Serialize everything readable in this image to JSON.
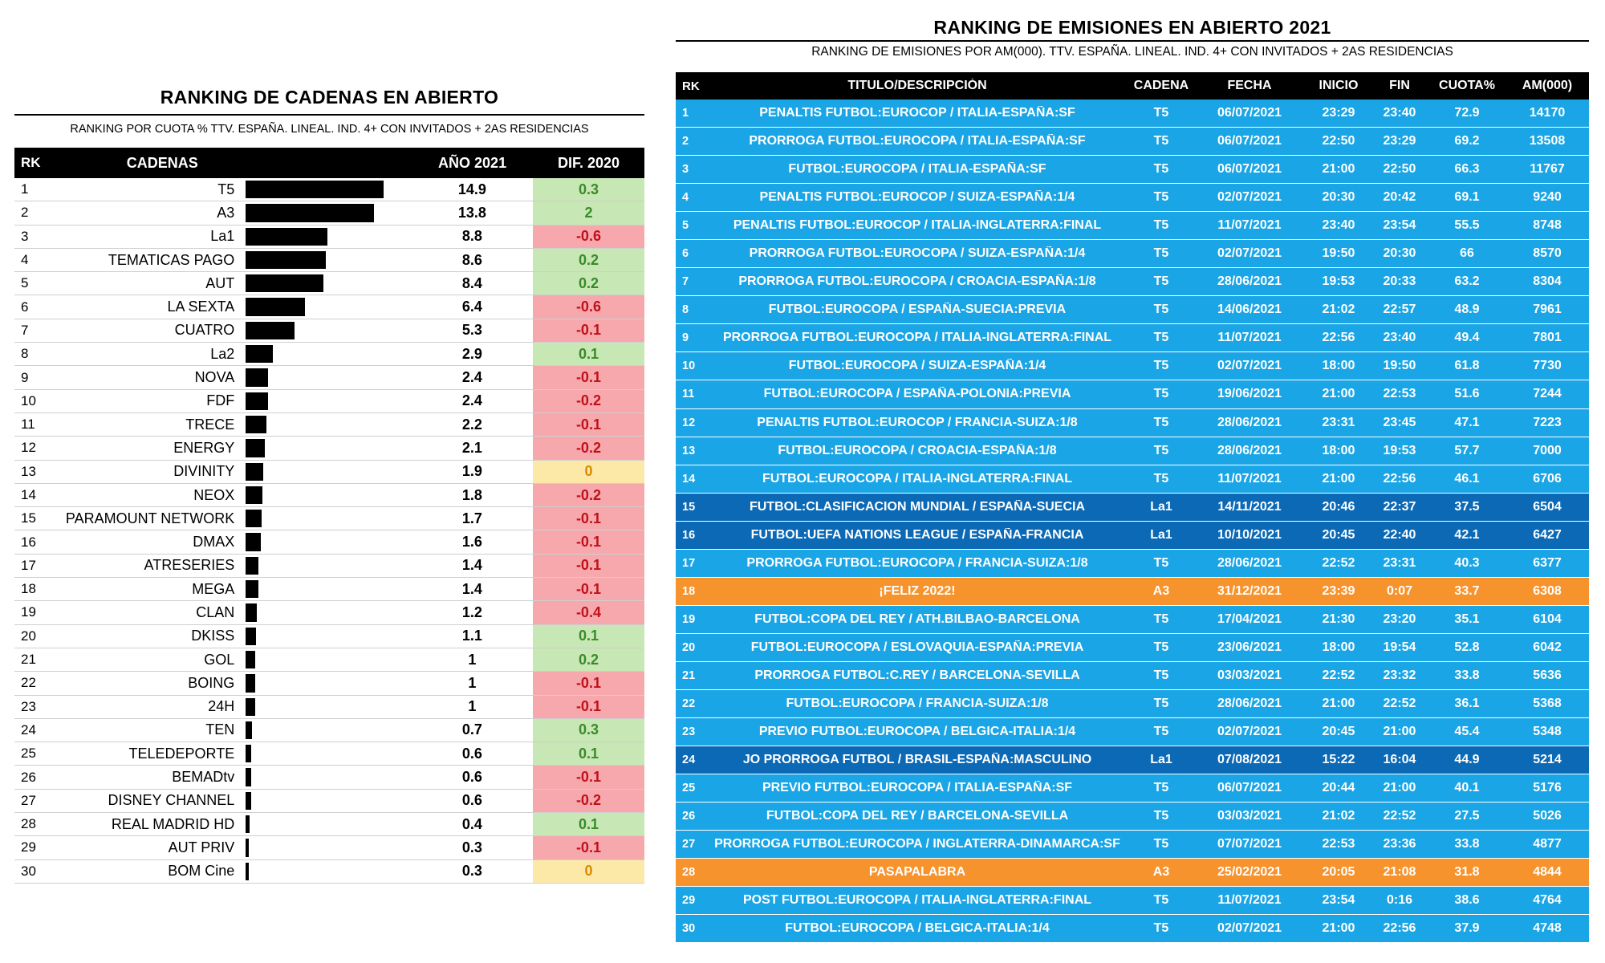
{
  "left": {
    "title": "RANKING DE CADENAS EN ABIERTO",
    "subtitle": "RANKING POR CUOTA % TTV. ESPAÑA. LINEAL. IND. 4+ CON INVITADOS + 2AS RESIDENCIAS",
    "headers": {
      "rk": "RK",
      "cadenas": "CADENAS",
      "anio": "AÑO 2021",
      "dif": "DIF. 2020"
    },
    "rows": [
      {
        "rk": "1",
        "name": "T5",
        "value": "14.9",
        "dif": "0.3",
        "sign": "pos"
      },
      {
        "rk": "2",
        "name": "A3",
        "value": "13.8",
        "dif": "2",
        "sign": "pos"
      },
      {
        "rk": "3",
        "name": "La1",
        "value": "8.8",
        "dif": "-0.6",
        "sign": "neg"
      },
      {
        "rk": "4",
        "name": "TEMATICAS PAGO",
        "value": "8.6",
        "dif": "0.2",
        "sign": "pos"
      },
      {
        "rk": "5",
        "name": "AUT",
        "value": "8.4",
        "dif": "0.2",
        "sign": "pos"
      },
      {
        "rk": "6",
        "name": "LA SEXTA",
        "value": "6.4",
        "dif": "-0.6",
        "sign": "neg"
      },
      {
        "rk": "7",
        "name": "CUATRO",
        "value": "5.3",
        "dif": "-0.1",
        "sign": "neg"
      },
      {
        "rk": "8",
        "name": "La2",
        "value": "2.9",
        "dif": "0.1",
        "sign": "pos"
      },
      {
        "rk": "9",
        "name": "NOVA",
        "value": "2.4",
        "dif": "-0.1",
        "sign": "neg"
      },
      {
        "rk": "10",
        "name": "FDF",
        "value": "2.4",
        "dif": "-0.2",
        "sign": "neg"
      },
      {
        "rk": "11",
        "name": "TRECE",
        "value": "2.2",
        "dif": "-0.1",
        "sign": "neg"
      },
      {
        "rk": "12",
        "name": "ENERGY",
        "value": "2.1",
        "dif": "-0.2",
        "sign": "neg"
      },
      {
        "rk": "13",
        "name": "DIVINITY",
        "value": "1.9",
        "dif": "0",
        "sign": "zero"
      },
      {
        "rk": "14",
        "name": "NEOX",
        "value": "1.8",
        "dif": "-0.2",
        "sign": "neg"
      },
      {
        "rk": "15",
        "name": "PARAMOUNT NETWORK",
        "value": "1.7",
        "dif": "-0.1",
        "sign": "neg"
      },
      {
        "rk": "16",
        "name": "DMAX",
        "value": "1.6",
        "dif": "-0.1",
        "sign": "neg"
      },
      {
        "rk": "17",
        "name": "ATRESERIES",
        "value": "1.4",
        "dif": "-0.1",
        "sign": "neg"
      },
      {
        "rk": "18",
        "name": "MEGA",
        "value": "1.4",
        "dif": "-0.1",
        "sign": "neg"
      },
      {
        "rk": "19",
        "name": "CLAN",
        "value": "1.2",
        "dif": "-0.4",
        "sign": "neg"
      },
      {
        "rk": "20",
        "name": "DKISS",
        "value": "1.1",
        "dif": "0.1",
        "sign": "pos"
      },
      {
        "rk": "21",
        "name": "GOL",
        "value": "1",
        "dif": "0.2",
        "sign": "pos"
      },
      {
        "rk": "22",
        "name": "BOING",
        "value": "1",
        "dif": "-0.1",
        "sign": "neg"
      },
      {
        "rk": "23",
        "name": "24H",
        "value": "1",
        "dif": "-0.1",
        "sign": "neg"
      },
      {
        "rk": "24",
        "name": "TEN",
        "value": "0.7",
        "dif": "0.3",
        "sign": "pos"
      },
      {
        "rk": "25",
        "name": "TELEDEPORTE",
        "value": "0.6",
        "dif": "0.1",
        "sign": "pos"
      },
      {
        "rk": "26",
        "name": "BEMADtv",
        "value": "0.6",
        "dif": "-0.1",
        "sign": "neg"
      },
      {
        "rk": "27",
        "name": "DISNEY CHANNEL",
        "value": "0.6",
        "dif": "-0.2",
        "sign": "neg"
      },
      {
        "rk": "28",
        "name": "REAL MADRID HD",
        "value": "0.4",
        "dif": "0.1",
        "sign": "pos"
      },
      {
        "rk": "29",
        "name": "AUT PRIV",
        "value": "0.3",
        "dif": "-0.1",
        "sign": "neg"
      },
      {
        "rk": "30",
        "name": "BOM Cine",
        "value": "0.3",
        "dif": "0",
        "sign": "zero"
      }
    ]
  },
  "right": {
    "title": "RANKING DE EMISIONES EN ABIERTO 2021",
    "subtitle": "RANKING DE EMISIONES POR AM(000). TTV. ESPAÑA. LINEAL. IND. 4+ CON INVITADOS + 2AS RESIDENCIAS",
    "headers": {
      "rk": "RK",
      "titulo": "TITULO/DESCRIPCIÓN",
      "cadena": "CADENA",
      "fecha": "FECHA",
      "inicio": "INICIO",
      "fin": "FIN",
      "cuota": "CUOTA%",
      "am": "AM(000)"
    },
    "colors": {
      "light": "#1aa5e6",
      "dark": "#0b69b6",
      "orange": "#f7932d"
    },
    "rows": [
      {
        "rk": "1",
        "titulo": "PENALTIS FUTBOL:EUROCOP / ITALIA-ESPAÑA:SF",
        "cadena": "T5",
        "fecha": "06/07/2021",
        "inicio": "23:29",
        "fin": "23:40",
        "cuota": "72.9",
        "am": "14170",
        "style": "light"
      },
      {
        "rk": "2",
        "titulo": "PRORROGA FUTBOL:EUROCOPA / ITALIA-ESPAÑA:SF",
        "cadena": "T5",
        "fecha": "06/07/2021",
        "inicio": "22:50",
        "fin": "23:29",
        "cuota": "69.2",
        "am": "13508",
        "style": "light"
      },
      {
        "rk": "3",
        "titulo": "FUTBOL:EUROCOPA / ITALIA-ESPAÑA:SF",
        "cadena": "T5",
        "fecha": "06/07/2021",
        "inicio": "21:00",
        "fin": "22:50",
        "cuota": "66.3",
        "am": "11767",
        "style": "light"
      },
      {
        "rk": "4",
        "titulo": "PENALTIS FUTBOL:EUROCOP / SUIZA-ESPAÑA:1/4",
        "cadena": "T5",
        "fecha": "02/07/2021",
        "inicio": "20:30",
        "fin": "20:42",
        "cuota": "69.1",
        "am": "9240",
        "style": "light"
      },
      {
        "rk": "5",
        "titulo": "PENALTIS FUTBOL:EUROCOP / ITALIA-INGLATERRA:FINAL",
        "cadena": "T5",
        "fecha": "11/07/2021",
        "inicio": "23:40",
        "fin": "23:54",
        "cuota": "55.5",
        "am": "8748",
        "style": "light"
      },
      {
        "rk": "6",
        "titulo": "PRORROGA FUTBOL:EUROCOPA / SUIZA-ESPAÑA:1/4",
        "cadena": "T5",
        "fecha": "02/07/2021",
        "inicio": "19:50",
        "fin": "20:30",
        "cuota": "66",
        "am": "8570",
        "style": "light"
      },
      {
        "rk": "7",
        "titulo": "PRORROGA FUTBOL:EUROCOPA / CROACIA-ESPAÑA:1/8",
        "cadena": "T5",
        "fecha": "28/06/2021",
        "inicio": "19:53",
        "fin": "20:33",
        "cuota": "63.2",
        "am": "8304",
        "style": "light"
      },
      {
        "rk": "8",
        "titulo": "FUTBOL:EUROCOPA / ESPAÑA-SUECIA:PREVIA",
        "cadena": "T5",
        "fecha": "14/06/2021",
        "inicio": "21:02",
        "fin": "22:57",
        "cuota": "48.9",
        "am": "7961",
        "style": "light"
      },
      {
        "rk": "9",
        "titulo": "PRORROGA FUTBOL:EUROCOPA / ITALIA-INGLATERRA:FINAL",
        "cadena": "T5",
        "fecha": "11/07/2021",
        "inicio": "22:56",
        "fin": "23:40",
        "cuota": "49.4",
        "am": "7801",
        "style": "light"
      },
      {
        "rk": "10",
        "titulo": "FUTBOL:EUROCOPA / SUIZA-ESPAÑA:1/4",
        "cadena": "T5",
        "fecha": "02/07/2021",
        "inicio": "18:00",
        "fin": "19:50",
        "cuota": "61.8",
        "am": "7730",
        "style": "light"
      },
      {
        "rk": "11",
        "titulo": "FUTBOL:EUROCOPA / ESPAÑA-POLONIA:PREVIA",
        "cadena": "T5",
        "fecha": "19/06/2021",
        "inicio": "21:00",
        "fin": "22:53",
        "cuota": "51.6",
        "am": "7244",
        "style": "light"
      },
      {
        "rk": "12",
        "titulo": "PENALTIS FUTBOL:EUROCOP / FRANCIA-SUIZA:1/8",
        "cadena": "T5",
        "fecha": "28/06/2021",
        "inicio": "23:31",
        "fin": "23:45",
        "cuota": "47.1",
        "am": "7223",
        "style": "light"
      },
      {
        "rk": "13",
        "titulo": "FUTBOL:EUROCOPA / CROACIA-ESPAÑA:1/8",
        "cadena": "T5",
        "fecha": "28/06/2021",
        "inicio": "18:00",
        "fin": "19:53",
        "cuota": "57.7",
        "am": "7000",
        "style": "light"
      },
      {
        "rk": "14",
        "titulo": "FUTBOL:EUROCOPA / ITALIA-INGLATERRA:FINAL",
        "cadena": "T5",
        "fecha": "11/07/2021",
        "inicio": "21:00",
        "fin": "22:56",
        "cuota": "46.1",
        "am": "6706",
        "style": "light"
      },
      {
        "rk": "15",
        "titulo": "FUTBOL:CLASIFICACION MUNDIAL / ESPAÑA-SUECIA",
        "cadena": "La1",
        "fecha": "14/11/2021",
        "inicio": "20:46",
        "fin": "22:37",
        "cuota": "37.5",
        "am": "6504",
        "style": "dark"
      },
      {
        "rk": "16",
        "titulo": "FUTBOL:UEFA NATIONS LEAGUE / ESPAÑA-FRANCIA",
        "cadena": "La1",
        "fecha": "10/10/2021",
        "inicio": "20:45",
        "fin": "22:40",
        "cuota": "42.1",
        "am": "6427",
        "style": "dark"
      },
      {
        "rk": "17",
        "titulo": "PRORROGA FUTBOL:EUROCOPA / FRANCIA-SUIZA:1/8",
        "cadena": "T5",
        "fecha": "28/06/2021",
        "inicio": "22:52",
        "fin": "23:31",
        "cuota": "40.3",
        "am": "6377",
        "style": "light"
      },
      {
        "rk": "18",
        "titulo": "¡FELIZ 2022!",
        "cadena": "A3",
        "fecha": "31/12/2021",
        "inicio": "23:39",
        "fin": "0:07",
        "cuota": "33.7",
        "am": "6308",
        "style": "orange"
      },
      {
        "rk": "19",
        "titulo": "FUTBOL:COPA DEL REY / ATH.BILBAO-BARCELONA",
        "cadena": "T5",
        "fecha": "17/04/2021",
        "inicio": "21:30",
        "fin": "23:20",
        "cuota": "35.1",
        "am": "6104",
        "style": "light"
      },
      {
        "rk": "20",
        "titulo": "FUTBOL:EUROCOPA / ESLOVAQUIA-ESPAÑA:PREVIA",
        "cadena": "T5",
        "fecha": "23/06/2021",
        "inicio": "18:00",
        "fin": "19:54",
        "cuota": "52.8",
        "am": "6042",
        "style": "light"
      },
      {
        "rk": "21",
        "titulo": "PRORROGA FUTBOL:C.REY / BARCELONA-SEVILLA",
        "cadena": "T5",
        "fecha": "03/03/2021",
        "inicio": "22:52",
        "fin": "23:32",
        "cuota": "33.8",
        "am": "5636",
        "style": "light"
      },
      {
        "rk": "22",
        "titulo": "FUTBOL:EUROCOPA / FRANCIA-SUIZA:1/8",
        "cadena": "T5",
        "fecha": "28/06/2021",
        "inicio": "21:00",
        "fin": "22:52",
        "cuota": "36.1",
        "am": "5368",
        "style": "light"
      },
      {
        "rk": "23",
        "titulo": "PREVIO FUTBOL:EUROCOPA / BELGICA-ITALIA:1/4",
        "cadena": "T5",
        "fecha": "02/07/2021",
        "inicio": "20:45",
        "fin": "21:00",
        "cuota": "45.4",
        "am": "5348",
        "style": "light"
      },
      {
        "rk": "24",
        "titulo": "JO PRORROGA FUTBOL / BRASIL-ESPAÑA:MASCULINO",
        "cadena": "La1",
        "fecha": "07/08/2021",
        "inicio": "15:22",
        "fin": "16:04",
        "cuota": "44.9",
        "am": "5214",
        "style": "dark"
      },
      {
        "rk": "25",
        "titulo": "PREVIO FUTBOL:EUROCOPA / ITALIA-ESPAÑA:SF",
        "cadena": "T5",
        "fecha": "06/07/2021",
        "inicio": "20:44",
        "fin": "21:00",
        "cuota": "40.1",
        "am": "5176",
        "style": "light"
      },
      {
        "rk": "26",
        "titulo": "FUTBOL:COPA DEL REY / BARCELONA-SEVILLA",
        "cadena": "T5",
        "fecha": "03/03/2021",
        "inicio": "21:02",
        "fin": "22:52",
        "cuota": "27.5",
        "am": "5026",
        "style": "light"
      },
      {
        "rk": "27",
        "titulo": "PRORROGA FUTBOL:EUROCOPA / INGLATERRA-DINAMARCA:SF",
        "cadena": "T5",
        "fecha": "07/07/2021",
        "inicio": "22:53",
        "fin": "23:36",
        "cuota": "33.8",
        "am": "4877",
        "style": "light"
      },
      {
        "rk": "28",
        "titulo": "PASAPALABRA",
        "cadena": "A3",
        "fecha": "25/02/2021",
        "inicio": "20:05",
        "fin": "21:08",
        "cuota": "31.8",
        "am": "4844",
        "style": "orange"
      },
      {
        "rk": "29",
        "titulo": "POST FUTBOL:EUROCOPA / ITALIA-INGLATERRA:FINAL",
        "cadena": "T5",
        "fecha": "11/07/2021",
        "inicio": "23:54",
        "fin": "0:16",
        "cuota": "38.6",
        "am": "4764",
        "style": "light"
      },
      {
        "rk": "30",
        "titulo": "FUTBOL:EUROCOPA / BELGICA-ITALIA:1/4",
        "cadena": "T5",
        "fecha": "02/07/2021",
        "inicio": "21:00",
        "fin": "22:56",
        "cuota": "37.9",
        "am": "4748",
        "style": "light"
      }
    ]
  }
}
